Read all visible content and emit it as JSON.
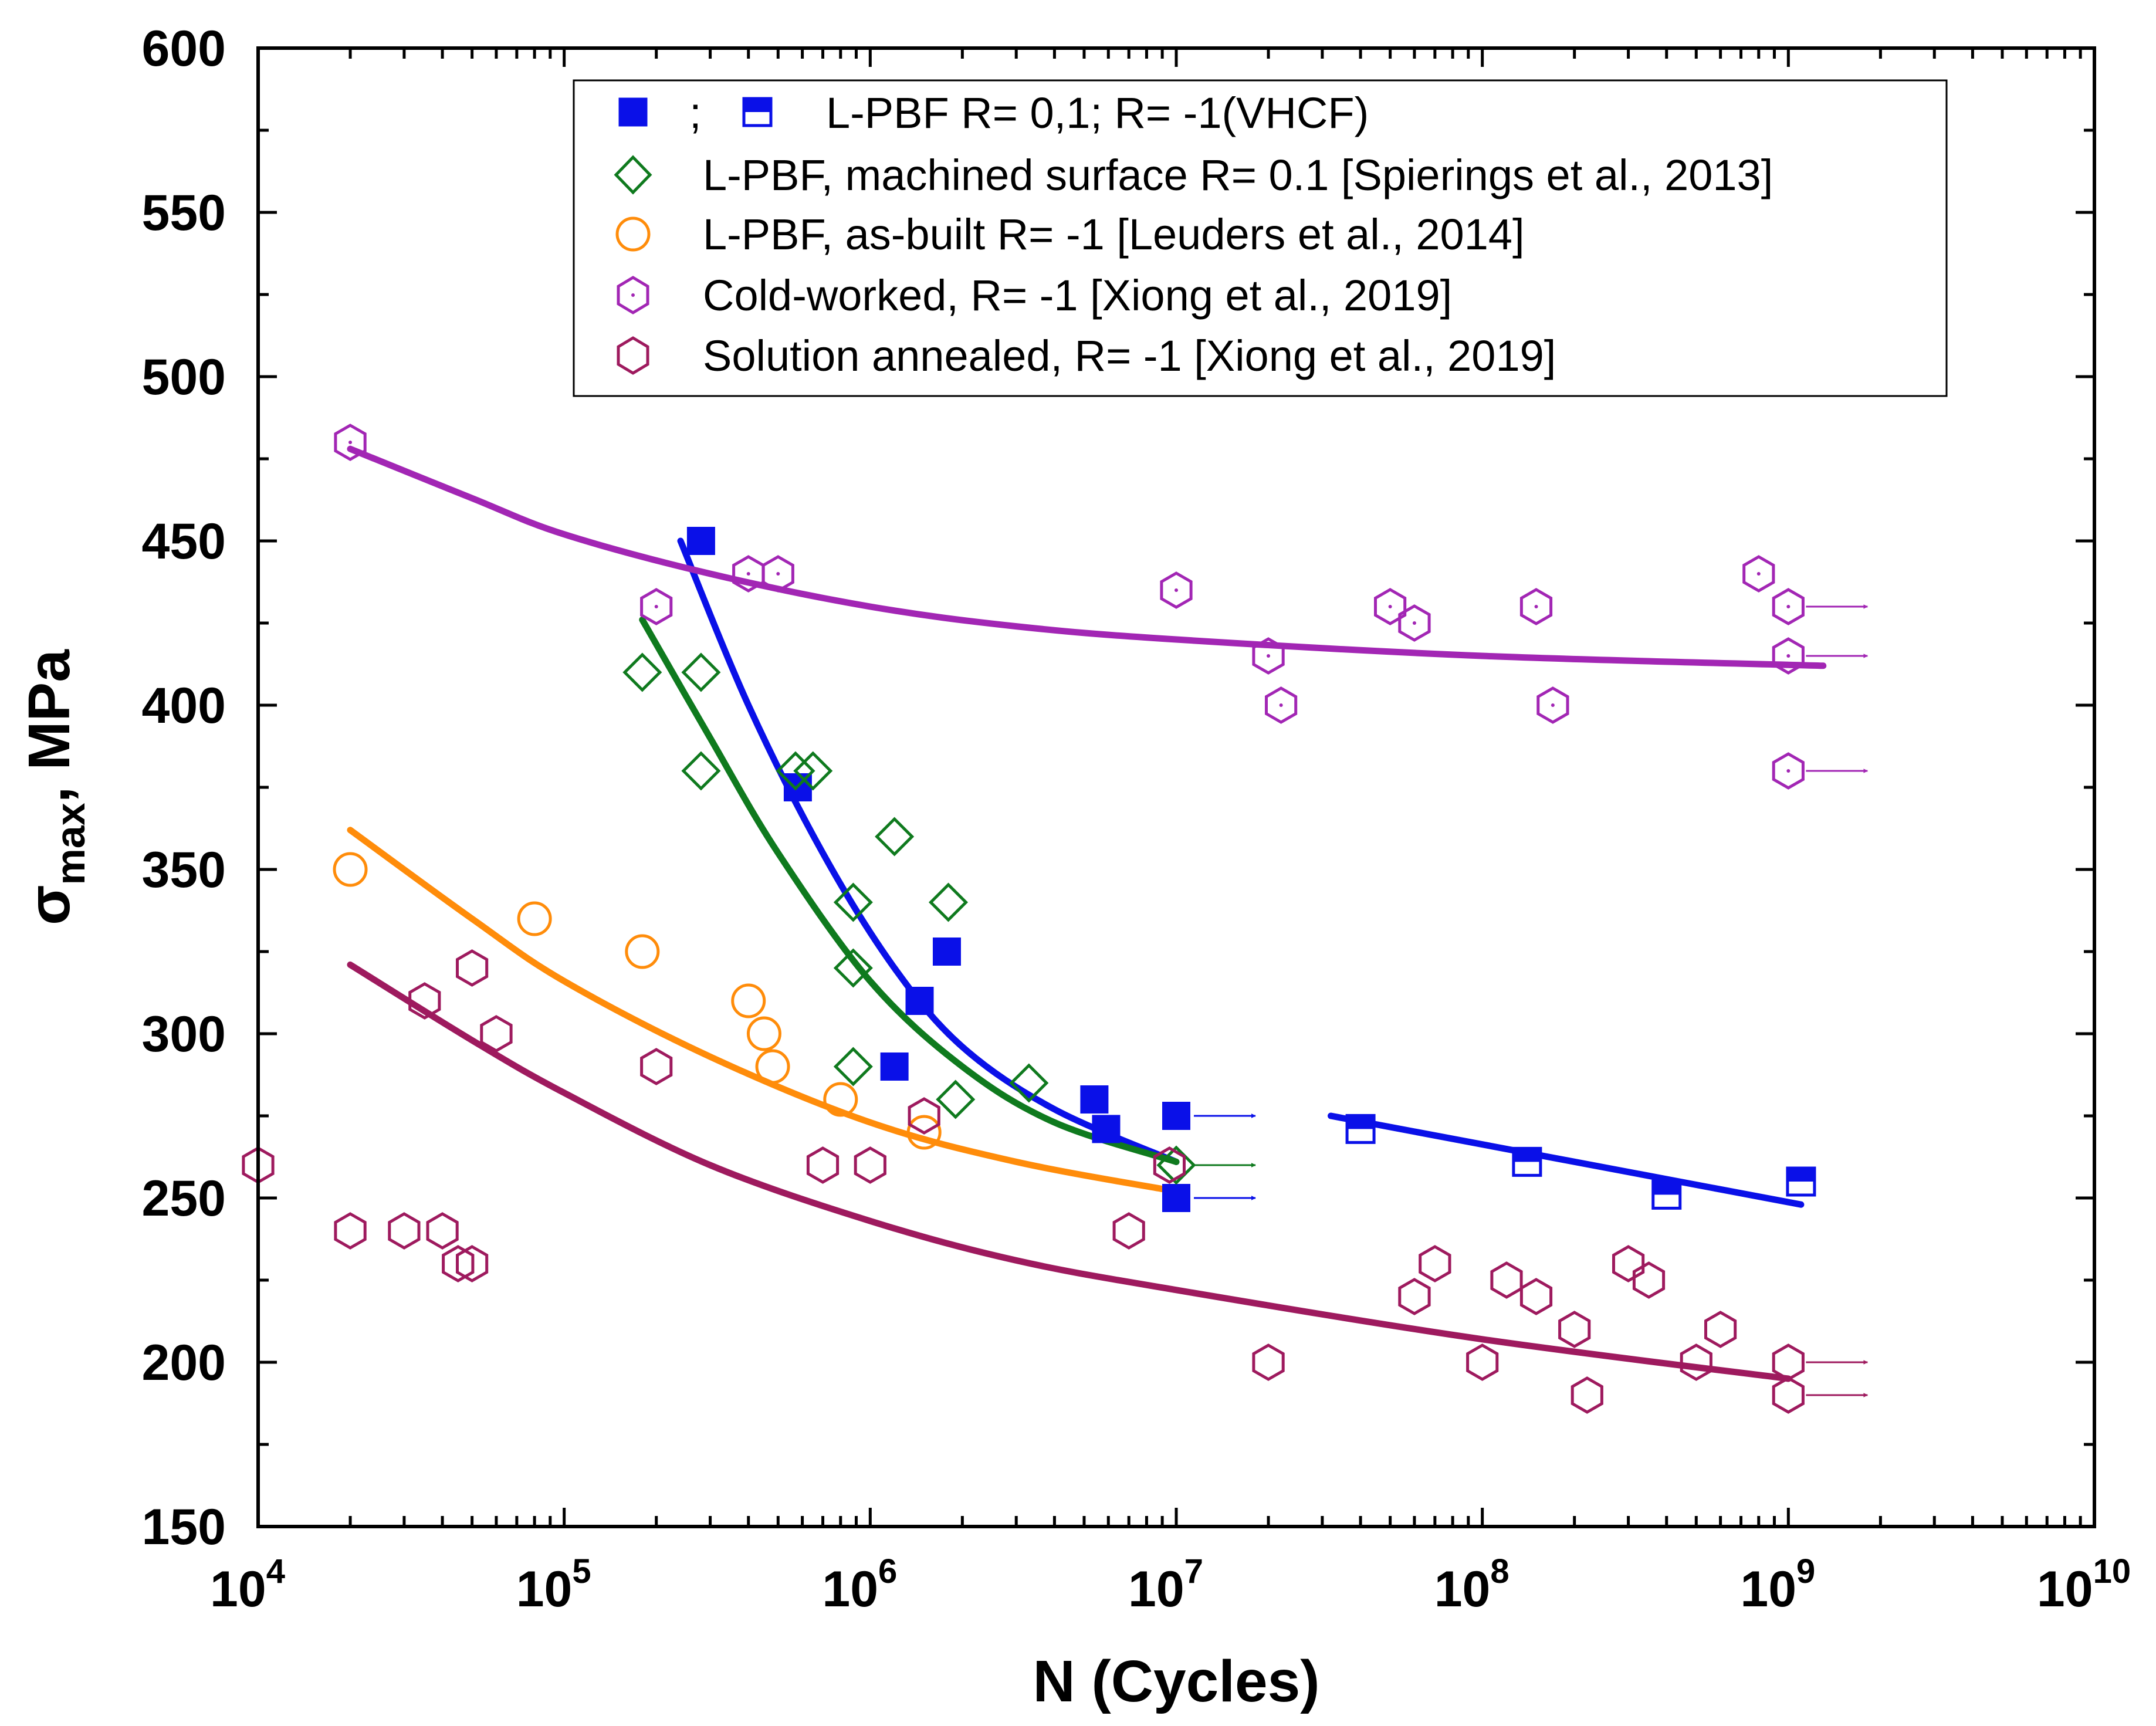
{
  "chart_data": {
    "type": "scatter",
    "title": "",
    "xlabel": "N (Cycles)",
    "ylabel": {
      "symbol": "σ",
      "subscript": "max",
      "suffix": ", MPa"
    },
    "xscale": "log",
    "xlim": [
      10000,
      10000000000
    ],
    "ylim": [
      150,
      600
    ],
    "x_ticks": [
      {
        "base": "10",
        "exp": "4",
        "value": 10000
      },
      {
        "base": "10",
        "exp": "5",
        "value": 100000
      },
      {
        "base": "10",
        "exp": "6",
        "value": 1000000
      },
      {
        "base": "10",
        "exp": "7",
        "value": 10000000
      },
      {
        "base": "10",
        "exp": "8",
        "value": 100000000
      },
      {
        "base": "10",
        "exp": "9",
        "value": 1000000000
      },
      {
        "base": "10",
        "exp": "10",
        "value": 10000000000
      }
    ],
    "y_ticks": [
      "150",
      "200",
      "250",
      "300",
      "350",
      "400",
      "450",
      "500",
      "550",
      "600"
    ],
    "legend": {
      "position": "top-center",
      "entries": [
        {
          "key": "lpbf",
          "sep": ";",
          "label": "L-PBF R= 0,1; R= -1(VHCF)"
        },
        {
          "key": "spierings",
          "label": "L-PBF, machined surface R= 0.1 [Spierings et al., 2013]"
        },
        {
          "key": "leuders",
          "label": "L-PBF, as-built R= -1 [Leuders et al., 2014]"
        },
        {
          "key": "cold",
          "label": "Cold-worked, R= -1  [Xiong et al., 2019]"
        },
        {
          "key": "annealed",
          "label": "Solution annealed, R= -1  [Xiong et al., 2019]"
        }
      ]
    },
    "series": [
      {
        "name": "L-PBF R= 0,1",
        "marker": "filled-square",
        "color": "#0a10e8",
        "points": [
          [
            280000,
            450
          ],
          [
            580000,
            375
          ],
          [
            1200000,
            290
          ],
          [
            1450000,
            310
          ],
          [
            1780000,
            325
          ],
          [
            5400000,
            280
          ],
          [
            5900000,
            271
          ],
          [
            10000000,
            275
          ],
          [
            10000000,
            250
          ]
        ],
        "runouts": [
          [
            10000000,
            275
          ],
          [
            10000000,
            250
          ]
        ],
        "fit": [
          [
            240000,
            450
          ],
          [
            400000,
            400
          ],
          [
            700000,
            355
          ],
          [
            1200000,
            320
          ],
          [
            2000000,
            296
          ],
          [
            4000000,
            277
          ],
          [
            10000000,
            261
          ]
        ]
      },
      {
        "name": "R= -1(VHCF)",
        "marker": "half-filled-square",
        "color": "#0a10e8",
        "points": [
          [
            40000000,
            271
          ],
          [
            140000000,
            261
          ],
          [
            400000000,
            251
          ],
          [
            1100000000,
            255
          ]
        ],
        "fit": [
          [
            32000000,
            275
          ],
          [
            1100000000,
            248
          ]
        ]
      },
      {
        "name": "L-PBF, machined surface R= 0.1 [Spierings et al., 2013]",
        "marker": "open-diamond",
        "color": "#0f7a1e",
        "points": [
          [
            180000,
            410
          ],
          [
            280000,
            410
          ],
          [
            280000,
            380
          ],
          [
            570000,
            380
          ],
          [
            650000,
            380
          ],
          [
            1200000,
            360
          ],
          [
            880000,
            340
          ],
          [
            1800000,
            340
          ],
          [
            880000,
            320
          ],
          [
            880000,
            290
          ],
          [
            1900000,
            280
          ],
          [
            3300000,
            285
          ],
          [
            10000000,
            260
          ]
        ],
        "runouts": [
          [
            10000000,
            260
          ]
        ],
        "fit": [
          [
            180000,
            426
          ],
          [
            300000,
            390
          ],
          [
            500000,
            355
          ],
          [
            1000000,
            316
          ],
          [
            2000000,
            290
          ],
          [
            4000000,
            273
          ],
          [
            10000000,
            261
          ]
        ]
      },
      {
        "name": "L-PBF, as-built R= -1 [Leuders et al., 2014]",
        "marker": "open-circle",
        "color": "#ff8c0a",
        "points": [
          [
            20000,
            350
          ],
          [
            80000,
            335
          ],
          [
            180000,
            325
          ],
          [
            400000,
            310
          ],
          [
            450000,
            300
          ],
          [
            480000,
            290
          ],
          [
            800000,
            280
          ],
          [
            1500000,
            270
          ]
        ],
        "fit": [
          [
            20000,
            362
          ],
          [
            50000,
            335
          ],
          [
            100000,
            316
          ],
          [
            300000,
            293
          ],
          [
            1000000,
            273
          ],
          [
            3000000,
            261
          ],
          [
            10000000,
            252
          ]
        ]
      },
      {
        "name": "Cold-worked, R= -1  [Xiong et al., 2019]",
        "marker": "open-hexagon-dot",
        "color": "#a226b4",
        "points": [
          [
            20000,
            480
          ],
          [
            200000,
            430
          ],
          [
            400000,
            440
          ],
          [
            500000,
            440
          ],
          [
            10000000,
            435
          ],
          [
            20000000,
            415
          ],
          [
            22000000,
            400
          ],
          [
            50000000,
            430
          ],
          [
            60000000,
            425
          ],
          [
            150000000,
            430
          ],
          [
            170000000,
            400
          ],
          [
            800000000,
            440
          ],
          [
            1000000000,
            430
          ],
          [
            1000000000,
            415
          ],
          [
            1000000000,
            380
          ]
        ],
        "runouts": [
          [
            1000000000,
            430
          ],
          [
            1000000000,
            415
          ],
          [
            1000000000,
            380
          ]
        ],
        "fit": [
          [
            20000,
            478
          ],
          [
            50000,
            463
          ],
          [
            100000,
            452
          ],
          [
            300000,
            440
          ],
          [
            1000000,
            430
          ],
          [
            3000000,
            424
          ],
          [
            10000000,
            420
          ],
          [
            100000000,
            415
          ],
          [
            1300000000,
            412
          ]
        ]
      },
      {
        "name": "Solution annealed, R= -1  [Xiong et al., 2019]",
        "marker": "open-hexagon",
        "color": "#9e1a5e",
        "points": [
          [
            10000,
            260
          ],
          [
            20000,
            240
          ],
          [
            30000,
            240
          ],
          [
            35000,
            310
          ],
          [
            40000,
            240
          ],
          [
            45000,
            230
          ],
          [
            50000,
            230
          ],
          [
            50000,
            320
          ],
          [
            60000,
            300
          ],
          [
            200000,
            290
          ],
          [
            700000,
            260
          ],
          [
            1000000,
            260
          ],
          [
            1500000,
            275
          ],
          [
            7000000,
            240
          ],
          [
            9500000,
            260
          ],
          [
            20000000,
            200
          ],
          [
            60000000,
            220
          ],
          [
            70000000,
            230
          ],
          [
            100000000,
            200
          ],
          [
            120000000,
            225
          ],
          [
            150000000,
            220
          ],
          [
            200000000,
            210
          ],
          [
            220000000,
            190
          ],
          [
            300000000,
            230
          ],
          [
            350000000,
            225
          ],
          [
            500000000,
            200
          ],
          [
            600000000,
            210
          ],
          [
            1000000000,
            200
          ],
          [
            1000000000,
            190
          ]
        ],
        "runouts": [
          [
            1000000000,
            200
          ],
          [
            1000000000,
            190
          ]
        ],
        "fit": [
          [
            20000,
            321
          ],
          [
            50000,
            298
          ],
          [
            100000,
            282
          ],
          [
            300000,
            260
          ],
          [
            1000000,
            243
          ],
          [
            3000000,
            231
          ],
          [
            10000000,
            222
          ],
          [
            100000000,
            207
          ],
          [
            1000000000,
            195
          ]
        ]
      }
    ]
  }
}
